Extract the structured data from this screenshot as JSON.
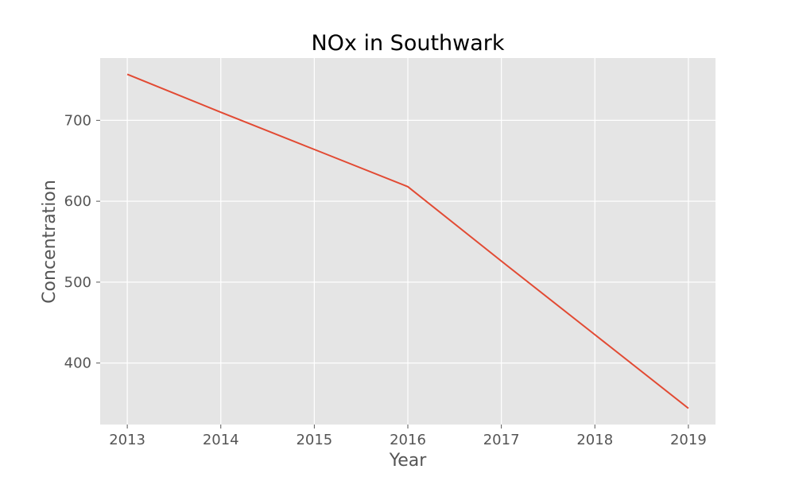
{
  "chart_data": {
    "type": "line",
    "title": "NOx in Southwark",
    "xlabel": "Year",
    "ylabel": "Concentration",
    "x": [
      2013,
      2014,
      2015,
      2016,
      2017,
      2018,
      2019
    ],
    "series": [
      {
        "values": [
          757,
          710,
          664,
          618,
          526,
          435,
          344
        ],
        "color": "#e24a33"
      }
    ],
    "xticks": [
      "2013",
      "2014",
      "2015",
      "2016",
      "2017",
      "2018",
      "2019"
    ],
    "yticks": [
      "400",
      "500",
      "600",
      "700"
    ],
    "xlim": [
      2012.71,
      2019.29
    ],
    "ylim": [
      324,
      777
    ],
    "grid": true,
    "colors": {
      "plot_background": "#e5e5e5",
      "grid": "#ffffff",
      "text": "#555555"
    }
  }
}
